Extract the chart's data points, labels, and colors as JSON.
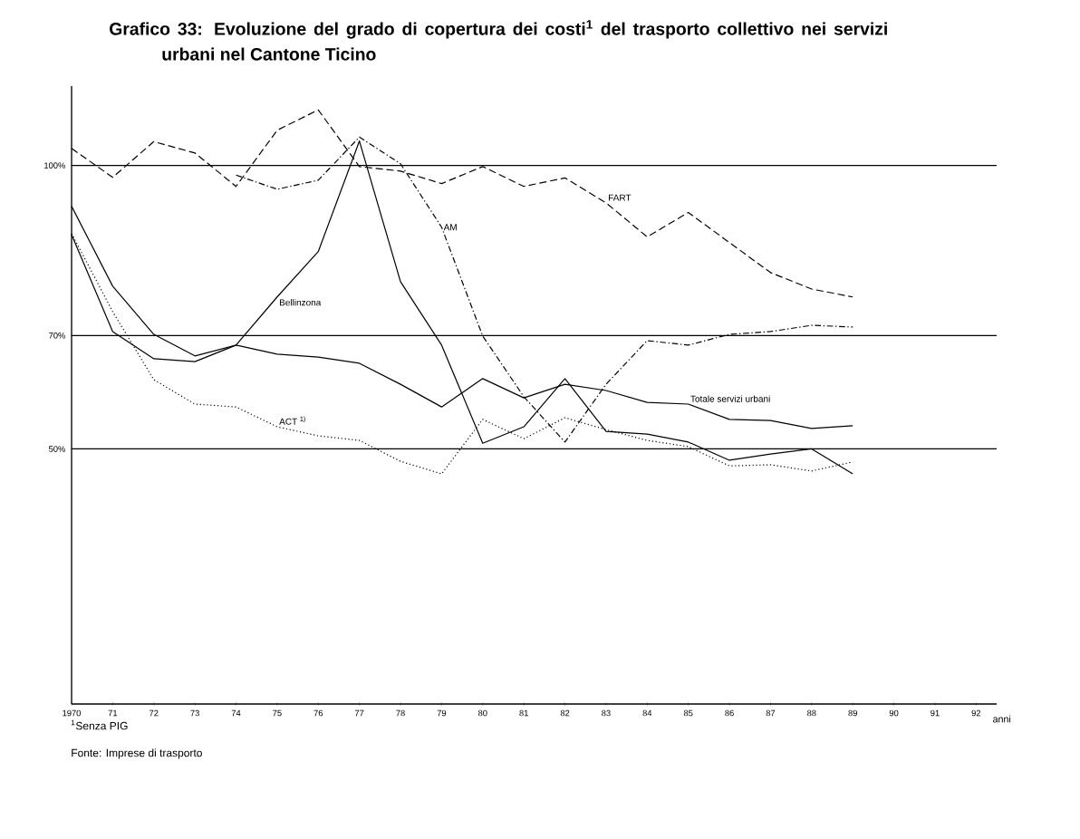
{
  "chart_data": {
    "type": "line",
    "title": "Grafico 33: Evoluzione del grado di copertura dei costi$^{1}$ del trasporto collettivo nei servizi urbani nel Cantone Ticino",
    "xlabel": "anni",
    "x": [
      1970,
      1971,
      1972,
      1973,
      1974,
      1975,
      1976,
      1977,
      1978,
      1979,
      1980,
      1981,
      1982,
      1983,
      1984,
      1985,
      1986,
      1987,
      1988,
      1989
    ],
    "series": [
      {
        "name": "FART",
        "color": "#000000",
        "line_style": "dashed",
        "values": [
          103,
          97.9,
          104.2,
          102.2,
          96.3,
          106.2,
          109.8,
          99.8,
          99,
          96.8,
          99.8,
          96.3,
          97.8,
          93.4,
          87.4,
          91.7,
          86.4,
          81.1,
          78.2,
          76.8
        ]
      },
      {
        "name": "AM",
        "color": "#000000",
        "line_style": "dashdot",
        "values": [
          null,
          null,
          null,
          null,
          98.3,
          95.8,
          97.4,
          105,
          100.3,
          89.1,
          69.9,
          59.2,
          51.2,
          61.4,
          69.1,
          68.3,
          70.2,
          70.7,
          71.8,
          71.5
        ]
      },
      {
        "name": "Bellinzona",
        "color": "#000000",
        "line_style": "solid",
        "values": [
          87.8,
          70.7,
          65.9,
          65.4,
          68.3,
          76.8,
          84.8,
          104.3,
          79.5,
          68.3,
          51,
          53.9,
          62.4,
          53.1,
          52.6,
          51.2,
          48,
          49.1,
          50,
          45.6
        ]
      },
      {
        "name": "ACT $^{1)}$",
        "color": "#000000",
        "line_style": "dotted",
        "values": [
          88,
          74.2,
          62.2,
          57.9,
          57.4,
          53.9,
          52.3,
          51.5,
          47.8,
          45.6,
          55.2,
          51.8,
          55.5,
          53.4,
          51.5,
          50.4,
          47,
          47.2,
          46.1,
          47.7
        ]
      },
      {
        "name": "Totale servizi urbani",
        "color": "#000000",
        "line_style": "solid",
        "values": [
          92.8,
          78.7,
          70.2,
          66.4,
          68.3,
          66.7,
          66.2,
          65.1,
          61.4,
          57.4,
          62.4,
          59,
          61.4,
          60.3,
          58.2,
          57.9,
          55.2,
          55,
          53.6,
          54.1
        ]
      }
    ],
    "xlim": [
      1970,
      1992.5
    ],
    "ylim": [
      5,
      114
    ],
    "xticks": [
      1970,
      {
        "value": 1971,
        "label": "71"
      },
      {
        "value": 1972,
        "label": "72"
      },
      {
        "value": 1973,
        "label": "73"
      },
      {
        "value": 1974,
        "label": "74"
      },
      {
        "value": 1975,
        "label": "75"
      },
      {
        "value": 1976,
        "label": "76"
      },
      {
        "value": 1977,
        "label": "77"
      },
      {
        "value": 1978,
        "label": "78"
      },
      {
        "value": 1979,
        "label": "79"
      },
      {
        "value": 1980,
        "label": "80"
      },
      {
        "value": 1981,
        "label": "81"
      },
      {
        "value": 1982,
        "label": "82"
      },
      {
        "value": 1983,
        "label": "83"
      },
      {
        "value": 1984,
        "label": "84"
      },
      {
        "value": 1985,
        "label": "85"
      },
      {
        "value": 1986,
        "label": "86"
      },
      {
        "value": 1987,
        "label": "87"
      },
      {
        "value": 1988,
        "label": "88"
      },
      {
        "value": 1989,
        "label": "89"
      },
      {
        "value": 1990,
        "label": "90"
      },
      {
        "value": 1991,
        "label": "91"
      },
      {
        "value": 1992,
        "label": "92"
      }
    ],
    "yticks": [
      {
        "value": 50,
        "label": "50%"
      },
      {
        "value": 70,
        "label": "70%"
      },
      {
        "value": 100,
        "label": "100%"
      }
    ],
    "grid": "y",
    "annotations": [
      "$^{1}$Senza PIG",
      "Fonte: Imprese di trasporto"
    ]
  }
}
